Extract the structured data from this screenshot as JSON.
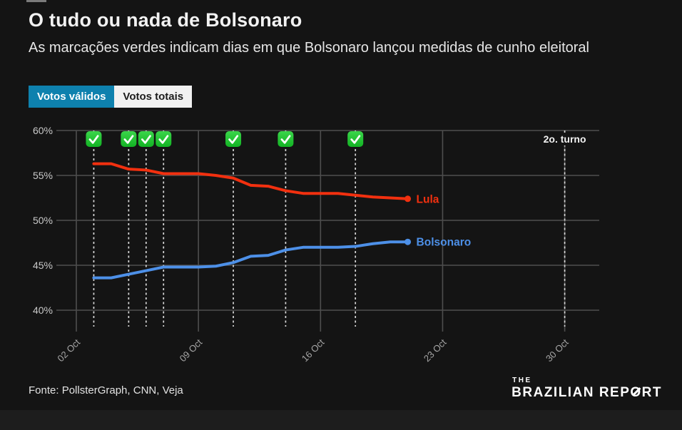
{
  "page": {
    "background": "#141414"
  },
  "header": {
    "title": "O tudo ou nada de Bolsonaro",
    "subtitle": "As marcações verdes indicam dias em que Bolsonaro lançou medidas de cunho eleitoral"
  },
  "tabs": [
    {
      "label": "Votos válidos",
      "active": true
    },
    {
      "label": "Votos totais",
      "active": false
    }
  ],
  "footer": {
    "source": "Fonte: PollsterGraph, CNN, Veja"
  },
  "logo": {
    "the": "THE",
    "brazilian": "BRAZILIAN",
    "report_pre": "REP",
    "report_o": "O",
    "report_post": "RT"
  },
  "chart_data": {
    "type": "line",
    "title": "O tudo ou nada de Bolsonaro",
    "x_unit": "October 2022 (day of month)",
    "x_days": [
      3,
      4,
      5,
      6,
      7,
      8,
      9,
      10,
      11,
      12,
      13,
      14,
      15,
      16,
      17,
      18,
      19,
      20,
      21
    ],
    "series": [
      {
        "name": "Lula",
        "color": "#f2300f",
        "values": [
          56.3,
          56.3,
          55.7,
          55.6,
          55.2,
          55.2,
          55.2,
          55.0,
          54.7,
          53.9,
          53.8,
          53.3,
          53.0,
          53.0,
          53.0,
          52.8,
          52.6,
          52.5,
          52.4
        ]
      },
      {
        "name": "Bolsonaro",
        "color": "#4d90e8",
        "values": [
          43.6,
          43.6,
          44.0,
          44.4,
          44.8,
          44.8,
          44.8,
          44.9,
          45.3,
          46.0,
          46.1,
          46.7,
          47.0,
          47.0,
          47.0,
          47.1,
          47.4,
          47.6,
          47.6
        ]
      }
    ],
    "event_marker_days": [
      3,
      5,
      6,
      7,
      11,
      14,
      18
    ],
    "event_marker_icon": "green-check-icon",
    "annotation": {
      "label": "2o. turno",
      "day": 30
    },
    "x_ticks": [
      {
        "day": 2,
        "label": "02 Oct"
      },
      {
        "day": 9,
        "label": "09 Oct"
      },
      {
        "day": 16,
        "label": "16 Oct"
      },
      {
        "day": 23,
        "label": "23 Oct"
      },
      {
        "day": 30,
        "label": "30 Oct"
      }
    ],
    "y_ticks": [
      {
        "value": 60,
        "label": "60%"
      },
      {
        "value": 55,
        "label": "55%"
      },
      {
        "value": 50,
        "label": "50%"
      },
      {
        "value": 45,
        "label": "45%"
      },
      {
        "value": 40,
        "label": "40%"
      }
    ],
    "ylim": [
      37.5,
      60
    ],
    "grid": true,
    "legend": "inline labels at line ends",
    "colors": {
      "grid": "#4e4e4e",
      "axis_label": "#c9c9c9",
      "date_label": "#a6a6a6",
      "dashed_line": "#d9d9d9",
      "check_green_top": "#3bd54a",
      "check_green_bottom": "#12b323",
      "annotation_text": "#f2f2f2",
      "tab_active_bg": "#0e81ae",
      "tab_inactive_bg": "#f1f1f1"
    }
  }
}
